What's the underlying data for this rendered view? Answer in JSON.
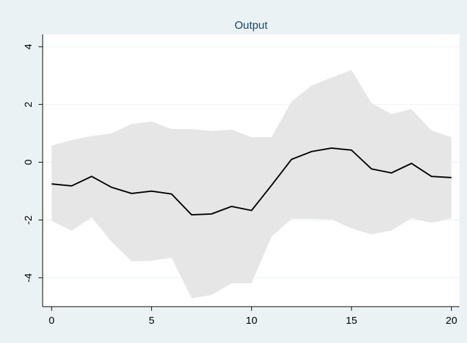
{
  "chart_data": {
    "type": "line",
    "title": "Output",
    "x": [
      0,
      1,
      2,
      3,
      4,
      5,
      6,
      7,
      8,
      9,
      10,
      11,
      12,
      13,
      14,
      15,
      16,
      17,
      18,
      19,
      20
    ],
    "values": [
      -0.75,
      -0.82,
      -0.49,
      -0.87,
      -1.08,
      -1.0,
      -1.1,
      -1.82,
      -1.79,
      -1.53,
      -1.67,
      -0.8,
      0.1,
      0.37,
      0.49,
      0.42,
      -0.23,
      -0.37,
      -0.04,
      -0.49,
      -0.53
    ],
    "upper": [
      0.58,
      0.77,
      0.91,
      1.0,
      1.32,
      1.41,
      1.15,
      1.15,
      1.08,
      1.13,
      0.87,
      0.87,
      2.1,
      2.65,
      2.93,
      3.19,
      2.05,
      1.67,
      1.84,
      1.1,
      0.87
    ],
    "lower": [
      -2.03,
      -2.37,
      -1.91,
      -2.76,
      -3.43,
      -3.41,
      -3.31,
      -4.71,
      -4.6,
      -4.19,
      -4.19,
      -2.58,
      -1.96,
      -1.96,
      -1.98,
      -2.29,
      -2.5,
      -2.36,
      -1.94,
      -2.1,
      -1.94
    ],
    "color": "#000000",
    "band_color": "#e6e6e6",
    "xlim": [
      -0.45,
      20.4
    ],
    "xticks": [
      0,
      5,
      10,
      15,
      20
    ],
    "ylim": [
      -5,
      4.43
    ],
    "yticks": [
      -4,
      -2,
      0,
      2,
      4
    ],
    "grid": true
  }
}
